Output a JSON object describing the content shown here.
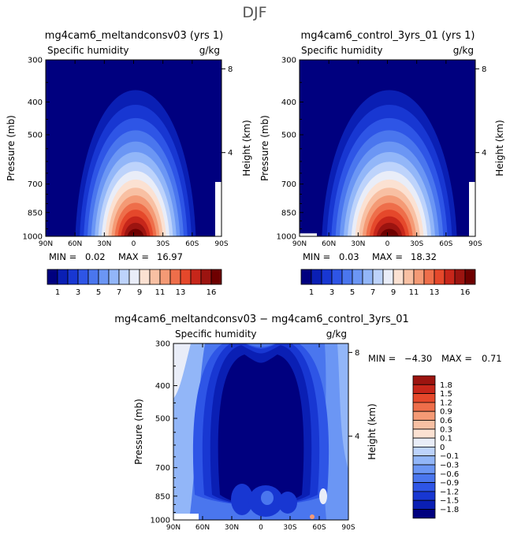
{
  "page_title": "DJF",
  "colors": {
    "levels_abs": [
      "#00007f",
      "#0a1fb4",
      "#1837d2",
      "#2e55e6",
      "#4a76ee",
      "#6b96f4",
      "#92b6f8",
      "#bdd3fb",
      "#e9edf8",
      "#fbe1d2",
      "#f8c0a3",
      "#f49a75",
      "#ee6e4a",
      "#e5482b",
      "#c7261a",
      "#9c1410",
      "#6e0000"
    ],
    "levels_diff": [
      "#00007f",
      "#0a1fb4",
      "#1837d2",
      "#2e55e6",
      "#4a76ee",
      "#6b96f4",
      "#92b6f8",
      "#bdd3fb",
      "#e9edf8",
      "#fbe1d2",
      "#f8c0a3",
      "#f49a75",
      "#ee6e4a",
      "#e5482b",
      "#c7261a",
      "#9c1410"
    ]
  },
  "chart_data": [
    {
      "type": "heatmap",
      "title": "mg4cam6_meltandconsv03 (yrs 1)",
      "subtitle_left": "Specific humidity",
      "subtitle_right": "g/kg",
      "ylabel": "Pressure (mb)",
      "ylabel_right": "Height (km)",
      "x_ticks": [
        "90N",
        "60N",
        "30N",
        "0",
        "30S",
        "60S",
        "90S"
      ],
      "y_ticks": [
        300,
        400,
        500,
        700,
        850,
        1000
      ],
      "y_right_ticks": [
        8,
        4
      ],
      "ylim": [
        300,
        1000
      ],
      "xlim": [
        90,
        -90
      ],
      "stats": {
        "min_label": "MIN =",
        "min": "0.02",
        "max_label": "MAX =",
        "max": "16.97"
      },
      "peak": 16.97,
      "colorbar_labels": [
        "1",
        "3",
        "5",
        "7",
        "9",
        "11",
        "13",
        "16"
      ]
    },
    {
      "type": "heatmap",
      "title": "mg4cam6_control_3yrs_01 (yrs 1)",
      "subtitle_left": "Specific humidity",
      "subtitle_right": "g/kg",
      "ylabel": "Pressure (mb)",
      "ylabel_right": "Height (km)",
      "x_ticks": [
        "90N",
        "60N",
        "30N",
        "0",
        "30S",
        "60S",
        "90S"
      ],
      "y_ticks": [
        300,
        400,
        500,
        700,
        850,
        1000
      ],
      "y_right_ticks": [
        8,
        4
      ],
      "ylim": [
        300,
        1000
      ],
      "xlim": [
        90,
        -90
      ],
      "stats": {
        "min_label": "MIN =",
        "min": "0.03",
        "max_label": "MAX =",
        "max": "18.32"
      },
      "peak": 18.32,
      "colorbar_labels": [
        "1",
        "3",
        "5",
        "7",
        "9",
        "11",
        "13",
        "16"
      ]
    },
    {
      "type": "heatmap",
      "title": "mg4cam6_meltandconsv03 − mg4cam6_control_3yrs_01",
      "subtitle_left": "Specific humidity",
      "subtitle_right": "g/kg",
      "ylabel": "Pressure (mb)",
      "ylabel_right": "Height (km)",
      "x_ticks": [
        "90N",
        "60N",
        "30N",
        "0",
        "30S",
        "60S",
        "90S"
      ],
      "y_ticks": [
        300,
        400,
        500,
        700,
        850,
        1000
      ],
      "y_right_ticks": [
        8,
        4
      ],
      "ylim": [
        300,
        1000
      ],
      "xlim": [
        90,
        -90
      ],
      "stats": {
        "min_label": "MIN =",
        "min": "−4.30",
        "max_label": "MAX =",
        "max": "0.71"
      },
      "colorbar_labels": [
        "1.8",
        "1.5",
        "1.2",
        "0.9",
        "0.6",
        "0.3",
        "0.1",
        "0",
        "−0.1",
        "−0.3",
        "−0.6",
        "−0.9",
        "−1.2",
        "−1.5",
        "−1.8"
      ]
    }
  ]
}
